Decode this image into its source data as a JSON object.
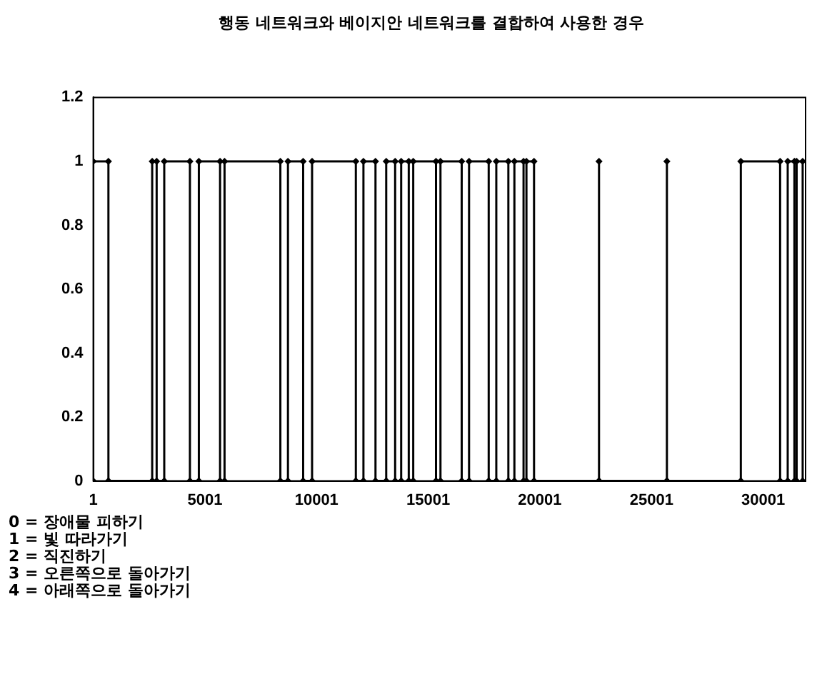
{
  "chart_data": {
    "type": "line",
    "title": "행동 네트워크와 베이지안 네트워크를 결합하여 사용한 경우",
    "xlim": [
      1,
      31900
    ],
    "xticks": [
      1,
      5001,
      10001,
      15001,
      20001,
      25001,
      30001
    ],
    "ylim": [
      0,
      1.2
    ],
    "yticks": [
      0,
      0.2,
      0.4,
      0.6,
      0.8,
      1,
      1.2
    ],
    "grid": false,
    "legend": false,
    "marker": "diamond",
    "line_style": "solid",
    "annotations": [
      "0 = 장애물 피하기",
      "1 = 빛 따라가기",
      "2 = 직진하기",
      "3 = 오른쪽으로 돌아가기",
      "4 = 아래쪽으로 돌아가기"
    ],
    "series": [
      {
        "color": "#000000",
        "x": [
          1,
          1,
          680,
          680,
          2640,
          2640,
          2840,
          2840,
          3180,
          3180,
          4330,
          4330,
          4730,
          4730,
          5680,
          5680,
          5880,
          5880,
          8380,
          8380,
          8720,
          8720,
          9400,
          9400,
          9800,
          9800,
          11760,
          11760,
          12100,
          12100,
          12640,
          12640,
          13120,
          13120,
          13520,
          13520,
          13790,
          13790,
          14130,
          14130,
          14330,
          14330,
          15350,
          15350,
          15550,
          15550,
          16500,
          16500,
          16830,
          16830,
          17710,
          17710,
          18050,
          18050,
          18590,
          18590,
          18860,
          18860,
          19270,
          19270,
          19400,
          19400,
          19740,
          19740,
          22650,
          22650,
          22650,
          25690,
          25690,
          25690,
          29000,
          29000,
          30760,
          30760,
          31100,
          31100,
          31400,
          31400,
          31500,
          31500,
          31770,
          31770
        ],
        "values": [
          0,
          1,
          1,
          0,
          0,
          1,
          1,
          0,
          0,
          1,
          1,
          0,
          0,
          1,
          1,
          0,
          0,
          1,
          1,
          0,
          0,
          1,
          1,
          0,
          0,
          1,
          1,
          0,
          0,
          1,
          1,
          0,
          0,
          1,
          1,
          0,
          0,
          1,
          1,
          0,
          0,
          1,
          1,
          0,
          0,
          1,
          1,
          0,
          0,
          1,
          1,
          0,
          0,
          1,
          1,
          0,
          0,
          1,
          1,
          0,
          0,
          1,
          1,
          0,
          0,
          1,
          0,
          0,
          1,
          0,
          0,
          1,
          1,
          0,
          0,
          1,
          1,
          0,
          0,
          1,
          1,
          0
        ]
      }
    ]
  }
}
